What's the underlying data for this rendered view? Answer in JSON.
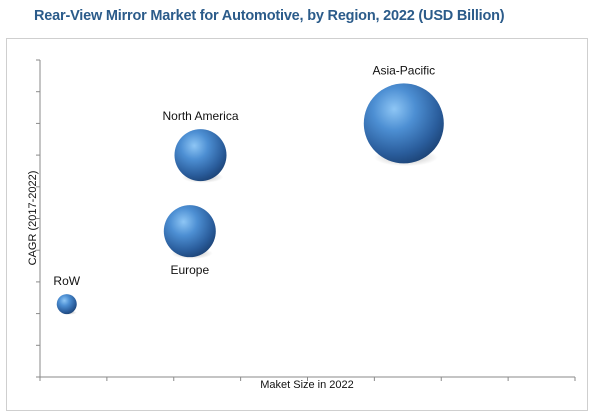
{
  "title": "Rear-View Mirror Market for Automotive, by Region, 2022 (USD Billion)",
  "chart_data": {
    "type": "scatter",
    "title": "Rear-View Mirror Market for Automotive, by Region, 2022 (USD Billion)",
    "xlabel": "Maket Size in 2022",
    "ylabel": "CAGR (2017-2022)",
    "xlim": [
      0,
      10
    ],
    "ylim": [
      0,
      10
    ],
    "grid": false,
    "bubble_color": "#3f6fa8",
    "points": [
      {
        "label": "Asia-Pacific",
        "x": 6.8,
        "y": 8.0,
        "size": 40
      },
      {
        "label": "North America",
        "x": 3.0,
        "y": 7.0,
        "size": 26
      },
      {
        "label": "Europe",
        "x": 2.8,
        "y": 4.6,
        "size": 26
      },
      {
        "label": "RoW",
        "x": 0.5,
        "y": 2.3,
        "size": 10
      }
    ]
  }
}
